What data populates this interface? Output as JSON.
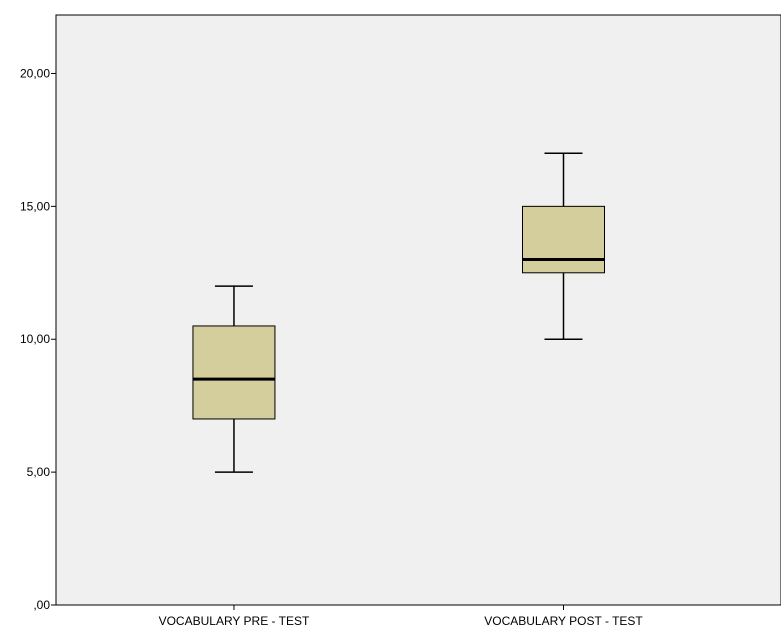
{
  "chart_data": {
    "type": "boxplot",
    "title": "",
    "xlabel": "",
    "ylabel": "",
    "ylim": [
      0,
      22.2
    ],
    "y_ticks": [
      0,
      5,
      10,
      15,
      20
    ],
    "y_tick_labels": [
      ",00",
      "5,00",
      "10,00",
      "15,00",
      "20,00"
    ],
    "categories": [
      "VOCABULARY PRE - TEST",
      "VOCABULARY POST - TEST"
    ],
    "boxes": [
      {
        "min": 5,
        "q1": 7,
        "median": 8.5,
        "q3": 10.5,
        "max": 12
      },
      {
        "min": 10,
        "q1": 12.5,
        "median": 13,
        "q3": 15,
        "max": 17
      }
    ],
    "grid": false,
    "legend": "none",
    "colors": {
      "plot_background": "#f0f0f0",
      "box_fill": "#d3ce9b",
      "line": "#000000"
    }
  }
}
